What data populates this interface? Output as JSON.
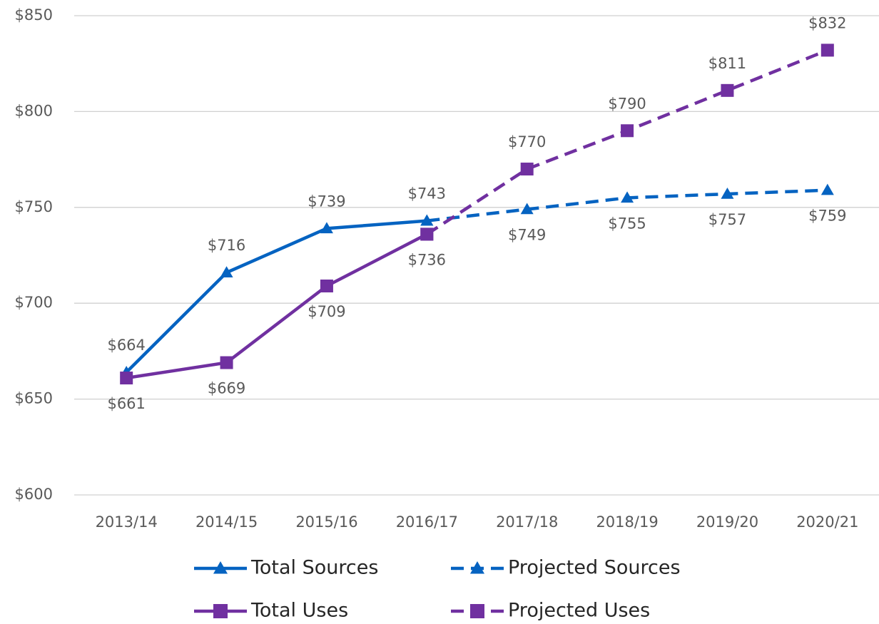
{
  "chart_data": {
    "type": "line",
    "categories": [
      "2013/14",
      "2014/15",
      "2015/16",
      "2016/17",
      "2017/18",
      "2018/19",
      "2019/20",
      "2020/21"
    ],
    "series": [
      {
        "name": "Total Sources",
        "color": "#0563C1",
        "dash": false,
        "marker": "triangle",
        "values": [
          664,
          716,
          739,
          743,
          null,
          null,
          null,
          null
        ],
        "value_labels": [
          "$664",
          "$716",
          "$739",
          "$743",
          null,
          null,
          null,
          null
        ]
      },
      {
        "name": "Projected Sources",
        "color": "#0563C1",
        "dash": true,
        "marker": "triangle",
        "values": [
          null,
          null,
          null,
          743,
          749,
          755,
          757,
          759
        ],
        "value_labels": [
          null,
          null,
          null,
          null,
          "$749",
          "$755",
          "$757",
          "$759"
        ]
      },
      {
        "name": "Total Uses",
        "color": "#7030A0",
        "dash": false,
        "marker": "square",
        "values": [
          661,
          669,
          709,
          736,
          null,
          null,
          null,
          null
        ],
        "value_labels": [
          "$661",
          "$669",
          "$709",
          "$736",
          null,
          null,
          null,
          null
        ]
      },
      {
        "name": "Projected Uses",
        "color": "#7030A0",
        "dash": true,
        "marker": "square",
        "values": [
          null,
          null,
          null,
          736,
          770,
          790,
          811,
          832
        ],
        "value_labels": [
          null,
          null,
          null,
          null,
          "$770",
          "$790",
          "$811",
          "$832"
        ]
      }
    ],
    "ylim": [
      600,
      850
    ],
    "yticks": [
      {
        "value": 600,
        "label": "$600"
      },
      {
        "value": 650,
        "label": "$650"
      },
      {
        "value": 700,
        "label": "$700"
      },
      {
        "value": 750,
        "label": "$750"
      },
      {
        "value": 800,
        "label": "$800"
      },
      {
        "value": 850,
        "label": "$850"
      }
    ],
    "grid": true
  }
}
